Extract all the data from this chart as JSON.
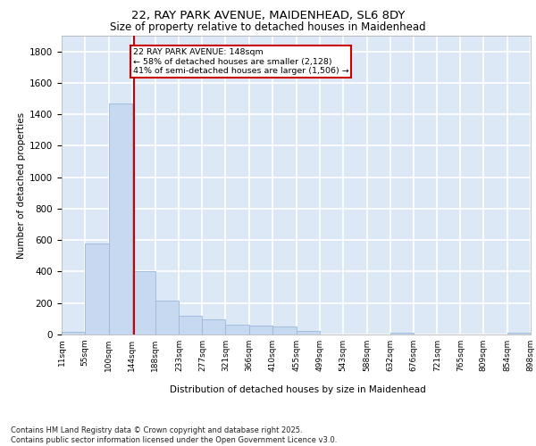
{
  "title_line1": "22, RAY PARK AVENUE, MAIDENHEAD, SL6 8DY",
  "title_line2": "Size of property relative to detached houses in Maidenhead",
  "xlabel": "Distribution of detached houses by size in Maidenhead",
  "ylabel": "Number of detached properties",
  "footer_line1": "Contains HM Land Registry data © Crown copyright and database right 2025.",
  "footer_line2": "Contains public sector information licensed under the Open Government Licence v3.0.",
  "annotation_line1": "22 RAY PARK AVENUE: 148sqm",
  "annotation_line2": "← 58% of detached houses are smaller (2,128)",
  "annotation_line3": "41% of semi-detached houses are larger (1,506) →",
  "property_size_sqm": 148,
  "bar_color": "#c6d9f0",
  "bar_edge_color": "#9ab8d8",
  "vline_color": "#cc0000",
  "annotation_box_color": "#cc0000",
  "background_color": "#dce8f5",
  "grid_color": "#ffffff",
  "ylim": [
    0,
    1900
  ],
  "yticks": [
    0,
    200,
    400,
    600,
    800,
    1000,
    1200,
    1400,
    1600,
    1800
  ],
  "bin_edges": [
    11,
    55,
    100,
    144,
    188,
    233,
    277,
    321,
    366,
    410,
    455,
    499,
    543,
    588,
    632,
    676,
    721,
    765,
    809,
    854,
    898
  ],
  "bin_labels": [
    "11sqm",
    "55sqm",
    "100sqm",
    "144sqm",
    "188sqm",
    "233sqm",
    "277sqm",
    "321sqm",
    "366sqm",
    "410sqm",
    "455sqm",
    "499sqm",
    "543sqm",
    "588sqm",
    "632sqm",
    "676sqm",
    "721sqm",
    "765sqm",
    "809sqm",
    "854sqm",
    "898sqm"
  ],
  "bar_heights": [
    15,
    580,
    1470,
    400,
    215,
    120,
    95,
    65,
    55,
    50,
    20,
    0,
    0,
    0,
    12,
    0,
    0,
    0,
    0,
    12
  ]
}
